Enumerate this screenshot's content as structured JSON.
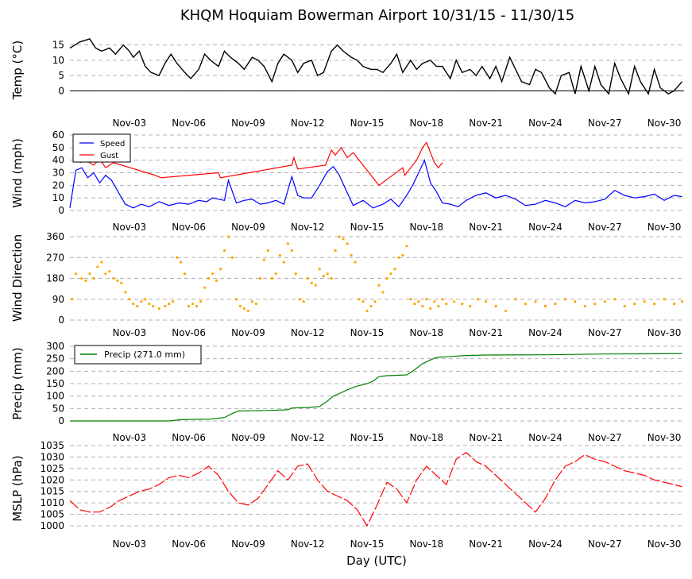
{
  "title": "KHQM Hoquiam Bowerman Airport 10/31/15 - 11/30/15",
  "xlabel": "Day (UTC)",
  "x_ticks": [
    "Nov-03",
    "Nov-06",
    "Nov-09",
    "Nov-12",
    "Nov-15",
    "Nov-18",
    "Nov-21",
    "Nov-24",
    "Nov-27",
    "Nov-30"
  ],
  "colors": {
    "temp": "#000000",
    "speed": "#0000ff",
    "gust": "#ff0000",
    "direction": "#ffa500",
    "precip": "#008000",
    "mslp": "#ff0000",
    "grid": "#b0b0b0"
  },
  "chart_data": [
    {
      "type": "line",
      "ylabel": "Temp (°C)",
      "yticks": [
        "0",
        "5",
        "10",
        "15"
      ],
      "ylim": [
        -2,
        17
      ],
      "x_unit": "day of Nov (UTC); 0 = Oct 31 00Z, 30 = Nov 30 00Z",
      "x_range": [
        0,
        31
      ],
      "grid": true,
      "series": [
        {
          "name": "Temperature",
          "x": [
            0,
            0.5,
            1,
            1.3,
            1.6,
            2,
            2.3,
            2.7,
            3,
            3.2,
            3.5,
            3.8,
            4.1,
            4.5,
            4.8,
            5.1,
            5.4,
            5.8,
            6.1,
            6.5,
            6.8,
            7.1,
            7.5,
            7.8,
            8.1,
            8.5,
            8.8,
            9.2,
            9.5,
            9.8,
            10.2,
            10.5,
            10.8,
            11.2,
            11.5,
            11.8,
            12.2,
            12.5,
            12.8,
            13.2,
            13.5,
            13.8,
            14.2,
            14.5,
            14.8,
            15.2,
            15.5,
            15.8,
            16.2,
            16.5,
            16.8,
            17.2,
            17.5,
            17.8,
            18.2,
            18.5,
            18.8,
            19.2,
            19.5,
            19.8,
            20.2,
            20.5,
            20.8,
            21.2,
            21.5,
            21.8,
            22.2,
            22.5,
            22.8,
            23.2,
            23.5,
            23.8,
            24.2,
            24.5,
            24.8,
            25.2,
            25.5,
            25.8,
            26.2,
            26.5,
            26.8,
            27.2,
            27.5,
            27.8,
            28.2,
            28.5,
            28.8,
            29.2,
            29.5,
            29.8,
            30.2,
            30.5,
            30.9
          ],
          "y": [
            14,
            16,
            17,
            14,
            13,
            14,
            12,
            15,
            13,
            11,
            13,
            8,
            6,
            5,
            9,
            12,
            9,
            6,
            4,
            7,
            12,
            10,
            8,
            13,
            11,
            9,
            7,
            11,
            10,
            8,
            3,
            9,
            12,
            10,
            6,
            9,
            10,
            5,
            6,
            13,
            15,
            13,
            11,
            10,
            8,
            7,
            7,
            6,
            9,
            12,
            6,
            10,
            7,
            9,
            10,
            8,
            8,
            4,
            10,
            6,
            7,
            5,
            8,
            4,
            8,
            3,
            11,
            7,
            3,
            2,
            7,
            6,
            1,
            -1,
            5,
            6,
            -1,
            8,
            0,
            8,
            2,
            -1,
            9,
            4,
            -1,
            8,
            3,
            -1,
            7,
            1,
            -1,
            0,
            3
          ]
        }
      ]
    },
    {
      "type": "line",
      "ylabel": "Wind (mph)",
      "yticks": [
        "0",
        "10",
        "20",
        "30",
        "40",
        "50",
        "60"
      ],
      "ylim": [
        0,
        60
      ],
      "legend": {
        "position": "top-left",
        "entries": [
          "Speed",
          "Gust"
        ]
      },
      "grid": true,
      "series": [
        {
          "name": "Speed",
          "x": [
            0,
            0.3,
            0.6,
            0.9,
            1.2,
            1.5,
            1.8,
            2.1,
            2.5,
            2.8,
            3.2,
            3.6,
            4,
            4.5,
            5,
            5.5,
            6,
            6.5,
            6.9,
            7.2,
            7.5,
            7.8,
            8,
            8.4,
            8.8,
            9.2,
            9.6,
            10,
            10.4,
            10.8,
            11.2,
            11.5,
            11.8,
            12.2,
            12.6,
            13,
            13.3,
            13.6,
            14,
            14.3,
            14.8,
            15.3,
            15.8,
            16.2,
            16.6,
            17,
            17.3,
            17.6,
            17.9,
            18.2,
            18.5,
            18.8,
            19.2,
            19.6,
            20,
            20.5,
            21,
            21.5,
            22,
            22.5,
            23,
            23.5,
            24,
            24.5,
            25,
            25.5,
            26,
            26.5,
            27,
            27.5,
            28,
            28.5,
            29,
            29.5,
            30,
            30.5,
            30.9
          ],
          "y": [
            2,
            32,
            34,
            26,
            30,
            22,
            28,
            24,
            13,
            5,
            2,
            5,
            3,
            7,
            4,
            6,
            5,
            8,
            7,
            10,
            9,
            8,
            24,
            6,
            8,
            9,
            5,
            6,
            8,
            5,
            27,
            12,
            10,
            10,
            20,
            31,
            35,
            28,
            14,
            4,
            8,
            2,
            5,
            9,
            3,
            12,
            20,
            30,
            40,
            22,
            15,
            6,
            5,
            3,
            8,
            12,
            14,
            10,
            12,
            9,
            4,
            5,
            8,
            6,
            3,
            8,
            6,
            7,
            9,
            16,
            12,
            10,
            11,
            13,
            8,
            12,
            11
          ]
        },
        {
          "name": "Gust",
          "x": [
            0.5,
            0.8,
            1.2,
            1.5,
            1.8,
            2.2,
            4.3,
            4.6,
            7.5,
            7.6,
            11.2,
            11.3,
            11.5,
            12.9,
            13.2,
            13.4,
            13.7,
            14,
            14.3,
            15.5,
            15.6,
            16.8,
            16.9,
            17.5,
            17.8,
            18,
            18.2,
            18.4,
            18.6,
            18.8
          ],
          "y": [
            38,
            40,
            36,
            41,
            34,
            38,
            28,
            26,
            30,
            26,
            36,
            42,
            33,
            36,
            48,
            44,
            50,
            42,
            46,
            22,
            20,
            34,
            28,
            40,
            50,
            54,
            46,
            38,
            34,
            38
          ]
        }
      ]
    },
    {
      "type": "scatter",
      "ylabel": "Wind Direction",
      "yticks": [
        "0",
        "90",
        "180",
        "270",
        "360"
      ],
      "ylim": [
        0,
        360
      ],
      "grid": true,
      "series": [
        {
          "name": "Wind Direction",
          "x": [
            0.1,
            0.3,
            0.6,
            0.8,
            1,
            1.2,
            1.4,
            1.6,
            1.8,
            2,
            2.2,
            2.4,
            2.6,
            2.8,
            3,
            3.2,
            3.4,
            3.6,
            3.8,
            4,
            4.2,
            4.5,
            4.8,
            5,
            5.2,
            5.4,
            5.6,
            5.8,
            6,
            6.2,
            6.4,
            6.6,
            6.8,
            7,
            7.2,
            7.4,
            7.6,
            7.8,
            8,
            8.2,
            8.4,
            8.6,
            8.8,
            9,
            9.2,
            9.4,
            9.6,
            9.8,
            10,
            10.2,
            10.4,
            10.6,
            10.8,
            11,
            11.2,
            11.4,
            11.6,
            11.8,
            12,
            12.2,
            12.4,
            12.6,
            12.8,
            13,
            13.2,
            13.4,
            13.6,
            13.8,
            14,
            14.2,
            14.4,
            14.6,
            14.8,
            15,
            15.2,
            15.4,
            15.6,
            15.8,
            16,
            16.2,
            16.4,
            16.6,
            16.8,
            17,
            17.2,
            17.4,
            17.6,
            17.8,
            18,
            18.2,
            18.4,
            18.6,
            18.8,
            19,
            19.4,
            19.8,
            20.2,
            20.6,
            21,
            21.5,
            22,
            22.5,
            23,
            23.5,
            24,
            24.5,
            25,
            25.5,
            26,
            26.5,
            27,
            27.5,
            28,
            28.5,
            29,
            29.5,
            30,
            30.5,
            30.9
          ],
          "y": [
            90,
            200,
            180,
            170,
            200,
            180,
            230,
            250,
            200,
            210,
            180,
            170,
            160,
            120,
            90,
            70,
            60,
            80,
            90,
            70,
            60,
            50,
            60,
            70,
            80,
            270,
            250,
            200,
            60,
            70,
            60,
            80,
            140,
            180,
            200,
            170,
            220,
            300,
            360,
            270,
            90,
            60,
            50,
            40,
            80,
            70,
            180,
            260,
            300,
            180,
            200,
            280,
            250,
            330,
            300,
            200,
            90,
            80,
            180,
            160,
            150,
            220,
            190,
            200,
            180,
            300,
            360,
            350,
            330,
            280,
            250,
            90,
            80,
            40,
            60,
            80,
            150,
            120,
            180,
            200,
            220,
            270,
            280,
            320,
            90,
            70,
            80,
            60,
            90,
            50,
            80,
            60,
            90,
            70,
            80,
            70,
            60,
            90,
            80,
            60,
            40,
            90,
            70,
            80,
            60,
            70,
            90,
            80,
            60,
            70,
            80,
            90,
            60,
            70,
            80,
            70,
            90,
            70,
            80
          ]
        }
      ]
    },
    {
      "type": "line",
      "ylabel": "Precip (mm)",
      "yticks": [
        "0",
        "50",
        "100",
        "150",
        "200",
        "250",
        "300"
      ],
      "ylim": [
        0,
        300
      ],
      "grid": true,
      "legend": {
        "position": "top-left",
        "entries": [
          "Precip (271.0 mm)"
        ]
      },
      "series": [
        {
          "name": "Precip (271.0 mm)",
          "x": [
            0,
            5,
            5.6,
            6,
            7,
            7.4,
            7.8,
            8,
            8.2,
            8.5,
            10,
            11,
            11.2,
            12,
            12.6,
            13,
            13.3,
            13.6,
            14,
            14.5,
            15,
            15.3,
            15.6,
            16,
            17,
            17.3,
            17.8,
            18.2,
            18.5,
            19,
            20,
            21,
            24,
            27,
            30,
            30.9
          ],
          "y": [
            0,
            0,
            5,
            6,
            7,
            10,
            14,
            22,
            30,
            40,
            42,
            45,
            52,
            54,
            58,
            80,
            100,
            110,
            125,
            140,
            150,
            160,
            178,
            182,
            185,
            200,
            230,
            245,
            255,
            258,
            263,
            265,
            266,
            269,
            270,
            271
          ]
        }
      ]
    },
    {
      "type": "line",
      "ylabel": "MSLP (hPa)",
      "yticks": [
        "1000",
        "1005",
        "1010",
        "1015",
        "1020",
        "1025",
        "1030",
        "1035"
      ],
      "ylim": [
        1000,
        1035
      ],
      "grid": true,
      "series": [
        {
          "name": "MSLP",
          "x": [
            0,
            0.5,
            1,
            1.5,
            2,
            2.5,
            3,
            3.5,
            4,
            4.5,
            5,
            5.5,
            6,
            6.5,
            7,
            7.5,
            8,
            8.5,
            9,
            9.5,
            10,
            10.5,
            11,
            11.5,
            12,
            12.5,
            13,
            13.5,
            14,
            14.5,
            15,
            15.5,
            16,
            16.5,
            17,
            17.5,
            18,
            18.5,
            19,
            19.5,
            20,
            20.5,
            21,
            21.5,
            22,
            22.5,
            23,
            23.5,
            24,
            24.5,
            25,
            25.5,
            26,
            26.5,
            27,
            27.5,
            28,
            28.5,
            29,
            29.5,
            30,
            30.5,
            30.9
          ],
          "y": [
            1011,
            1007,
            1006,
            1006,
            1008,
            1011,
            1013,
            1015,
            1016,
            1018,
            1021,
            1022,
            1021,
            1023,
            1026,
            1022,
            1015,
            1010,
            1009,
            1012,
            1018,
            1024,
            1020,
            1026,
            1027,
            1020,
            1015,
            1013,
            1011,
            1007,
            1000,
            1009,
            1019,
            1016,
            1010,
            1020,
            1026,
            1022,
            1018,
            1029,
            1032,
            1028,
            1026,
            1022,
            1018,
            1014,
            1010,
            1006,
            1012,
            1020,
            1026,
            1028,
            1031,
            1029,
            1028,
            1026,
            1024,
            1023,
            1022,
            1020,
            1019,
            1018,
            1017
          ]
        }
      ]
    }
  ]
}
